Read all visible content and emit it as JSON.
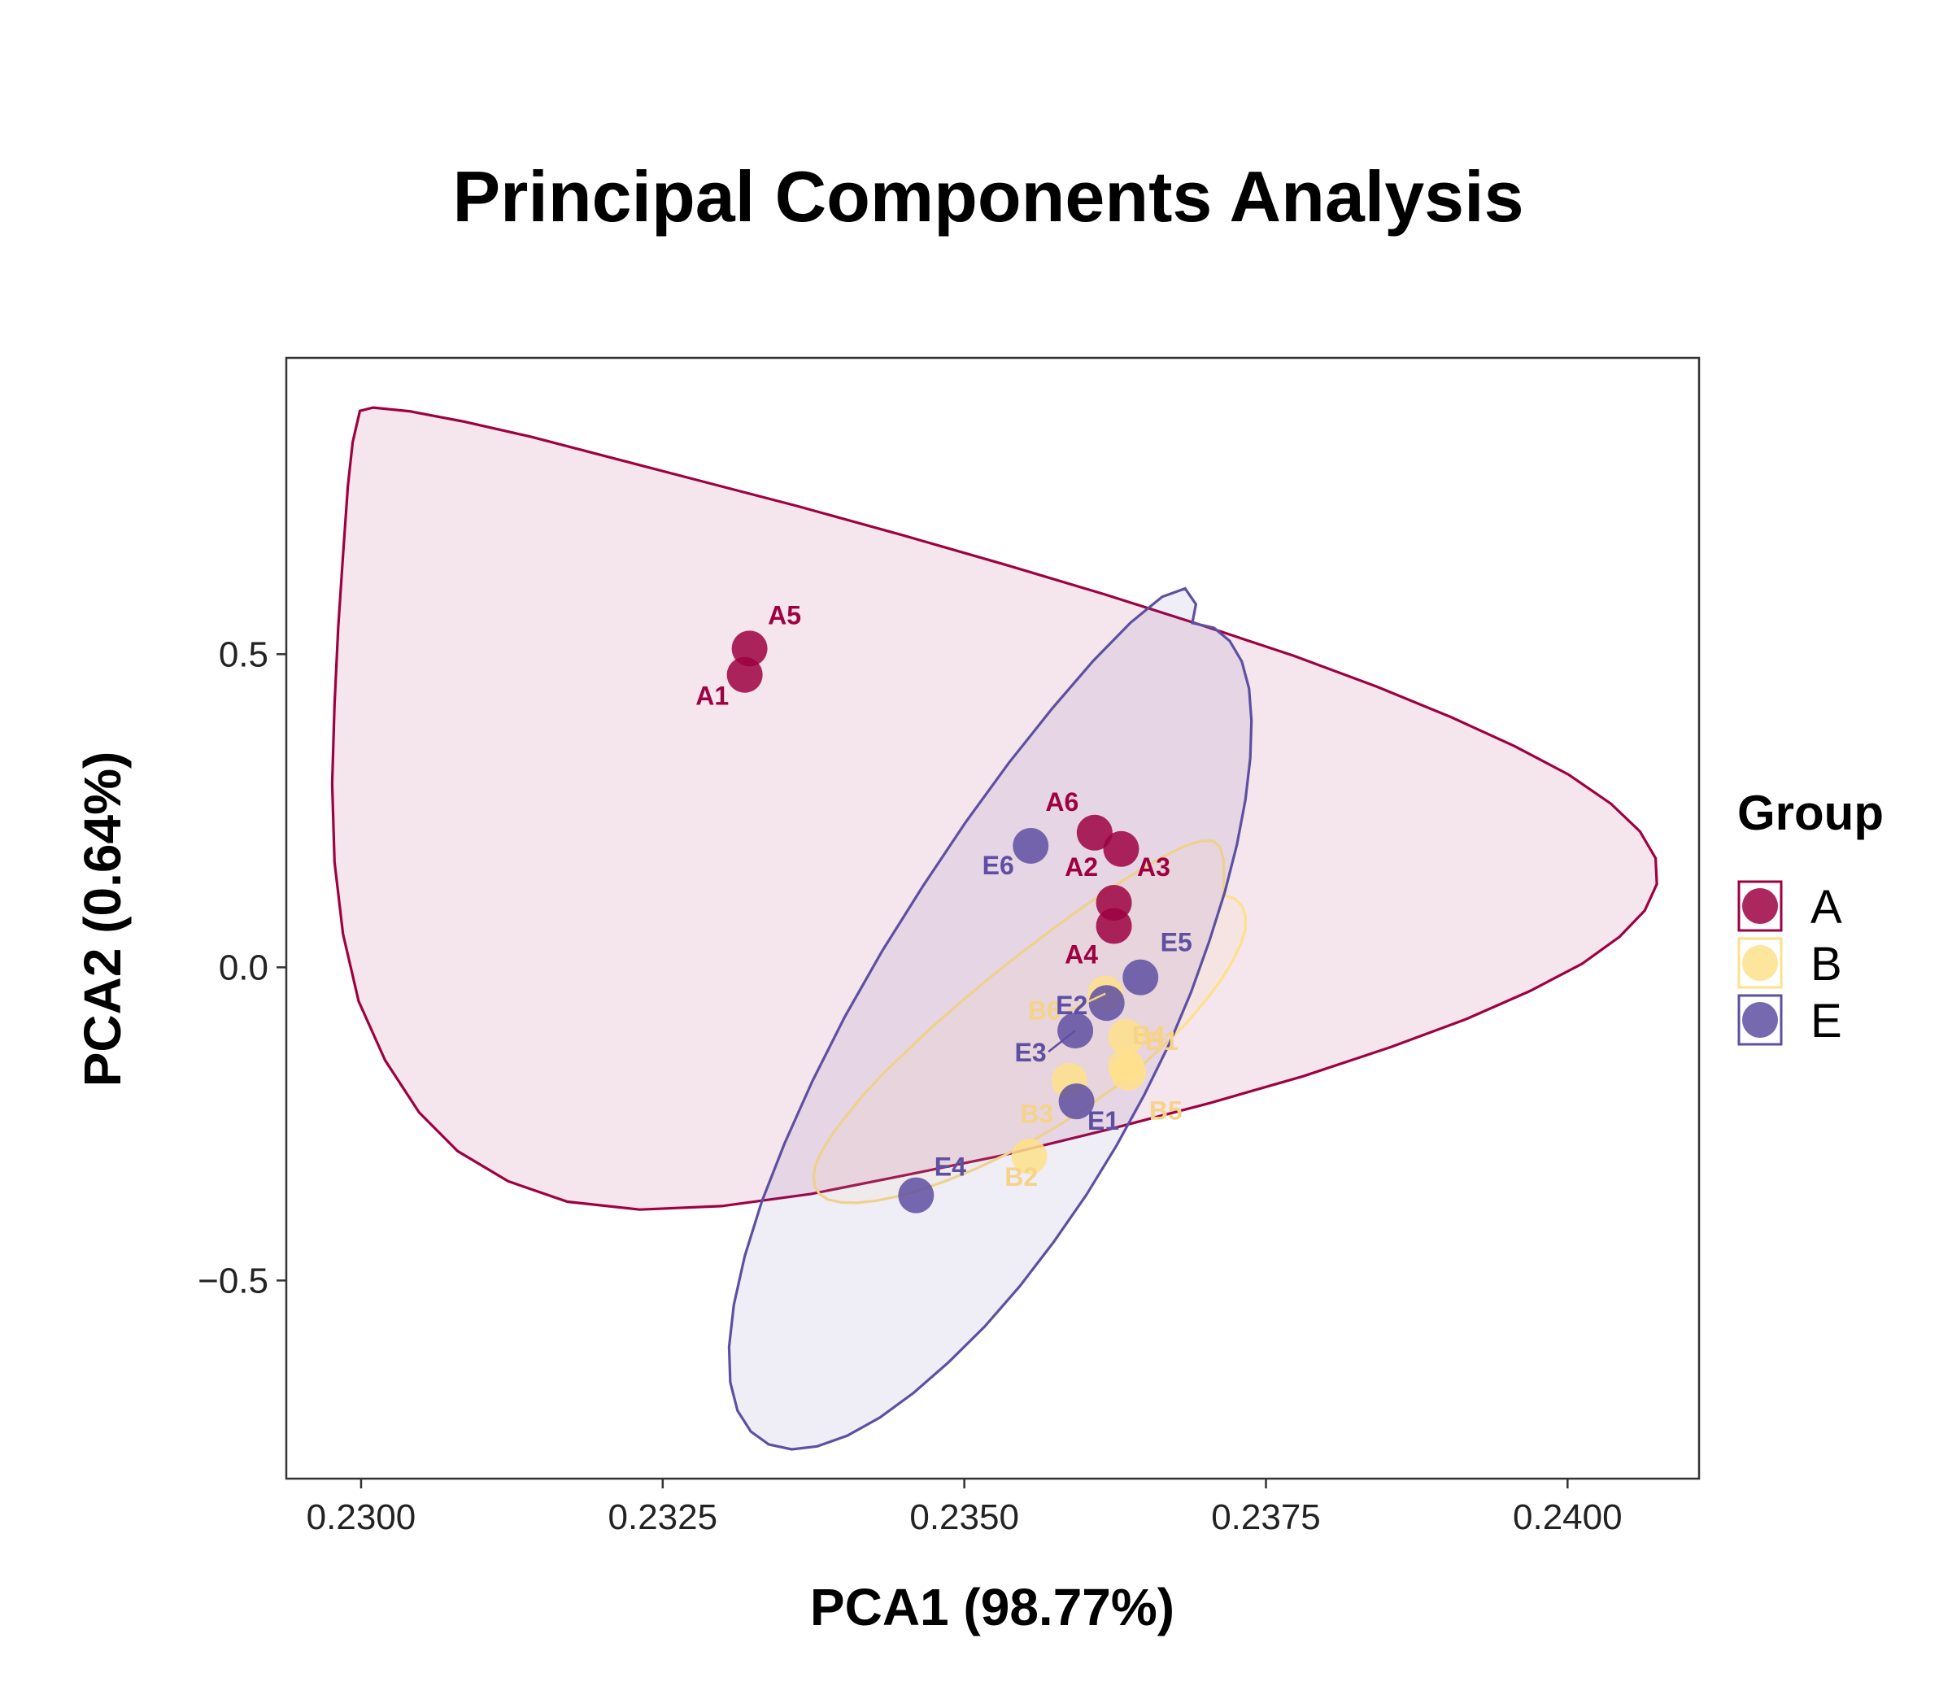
{
  "chart_data": {
    "type": "scatter",
    "title": "Principal Components Analysis",
    "xlabel": "PCA1 (98.77%)",
    "ylabel": "PCA2 (0.64%)",
    "xlim": [
      0.22938,
      0.24109
    ],
    "ylim": [
      -0.8164,
      0.9731
    ],
    "xticks": [
      0.23,
      0.2325,
      0.235,
      0.2375,
      0.24
    ],
    "xtick_labels": [
      "0.2300",
      "0.2325",
      "0.2350",
      "0.2375",
      "0.2400"
    ],
    "yticks": [
      0.5,
      0.0,
      -0.5
    ],
    "ytick_labels": [
      "0.5",
      "0.0",
      "−0.5"
    ],
    "grid": false,
    "legend": {
      "title": "Group",
      "placement": "right",
      "entries": [
        {
          "label": "A",
          "color": "#9E0142"
        },
        {
          "label": "B",
          "color": "#FEE08B"
        },
        {
          "label": "E",
          "color": "#5E4FA2"
        }
      ]
    },
    "series": [
      {
        "name": "A",
        "color": "#9E0142",
        "label_color": "#9E0142",
        "points": [
          {
            "label": "A1",
            "x": 0.23318,
            "y": 0.467
          },
          {
            "label": "A2",
            "x": 0.23624,
            "y": 0.103
          },
          {
            "label": "A3",
            "x": 0.2363,
            "y": 0.189
          },
          {
            "label": "A4",
            "x": 0.23624,
            "y": 0.066
          },
          {
            "label": "A5",
            "x": 0.23322,
            "y": 0.509
          },
          {
            "label": "A6",
            "x": 0.23608,
            "y": 0.215
          }
        ],
        "ellipse": [
          [
            0.22999,
            0.8884
          ],
          [
            0.2301,
            0.8937
          ],
          [
            0.2304,
            0.8879
          ],
          [
            0.23084,
            0.8718
          ],
          [
            0.2314,
            0.8475
          ],
          [
            0.23204,
            0.8155
          ],
          [
            0.23278,
            0.7783
          ],
          [
            0.23361,
            0.7368
          ],
          [
            0.23449,
            0.6899
          ],
          [
            0.23534,
            0.6428
          ],
          [
            0.23616,
            0.5957
          ],
          [
            0.23696,
            0.5466
          ],
          [
            0.23773,
            0.4975
          ],
          [
            0.23842,
            0.4481
          ],
          [
            0.23903,
            0.3999
          ],
          [
            0.23956,
            0.3533
          ],
          [
            0.24001,
            0.3075
          ],
          [
            0.24036,
            0.2612
          ],
          [
            0.2406,
            0.217
          ],
          [
            0.24073,
            0.1742
          ],
          [
            0.24074,
            0.1328
          ],
          [
            0.24064,
            0.0906
          ],
          [
            0.24043,
            0.0486
          ],
          [
            0.24012,
            0.0056
          ],
          [
            0.23969,
            -0.0377
          ],
          [
            0.23916,
            -0.0827
          ],
          [
            0.23854,
            -0.1269
          ],
          [
            0.23781,
            -0.1738
          ],
          [
            0.23703,
            -0.2169
          ],
          [
            0.2362,
            -0.2587
          ],
          [
            0.23532,
            -0.3001
          ],
          [
            0.2345,
            -0.3323
          ],
          [
            0.23373,
            -0.3618
          ],
          [
            0.23299,
            -0.3812
          ],
          [
            0.23231,
            -0.3868
          ],
          [
            0.23171,
            -0.3742
          ],
          [
            0.23122,
            -0.3416
          ],
          [
            0.2308,
            -0.2935
          ],
          [
            0.23048,
            -0.2315
          ],
          [
            0.2302,
            -0.1486
          ],
          [
            0.22998,
            -0.0544
          ],
          [
            0.22985,
            0.0534
          ],
          [
            0.22978,
            0.1681
          ],
          [
            0.22976,
            0.2932
          ],
          [
            0.22978,
            0.4194
          ],
          [
            0.22981,
            0.5418
          ],
          [
            0.22985,
            0.6573
          ],
          [
            0.22989,
            0.7683
          ],
          [
            0.22993,
            0.8383
          ],
          [
            0.22999,
            0.8884
          ]
        ],
        "fill": "#9E0142",
        "fill_opacity": 0.1
      },
      {
        "name": "B",
        "color": "#FEE08B",
        "label_color": "#F5D38A",
        "points": [
          {
            "label": "B1",
            "x": 0.23634,
            "y": -0.111
          },
          {
            "label": "B2",
            "x": 0.23554,
            "y": -0.302
          },
          {
            "label": "B3",
            "x": 0.23587,
            "y": -0.181
          },
          {
            "label": "B4",
            "x": 0.23634,
            "y": -0.158
          },
          {
            "label": "B5",
            "x": 0.23636,
            "y": -0.168
          },
          {
            "label": "B6",
            "x": 0.23617,
            "y": -0.042
          }
        ],
        "ellipse": [
          [
            0.23715,
            0.1155
          ],
          [
            0.23724,
            0.1098
          ],
          [
            0.2373,
            0.0986
          ],
          [
            0.23733,
            0.082
          ],
          [
            0.23733,
            0.061
          ],
          [
            0.23729,
            0.0361
          ],
          [
            0.23722,
            0.0082
          ],
          [
            0.23712,
            -0.0225
          ],
          [
            0.23699,
            -0.0553
          ],
          [
            0.23684,
            -0.0893
          ],
          [
            0.23666,
            -0.1236
          ],
          [
            0.23647,
            -0.1574
          ],
          [
            0.23626,
            -0.1901
          ],
          [
            0.23603,
            -0.2213
          ],
          [
            0.2358,
            -0.2504
          ],
          [
            0.23556,
            -0.2772
          ],
          [
            0.23532,
            -0.3012
          ],
          [
            0.23509,
            -0.3222
          ],
          [
            0.23486,
            -0.3401
          ],
          [
            0.23465,
            -0.3546
          ],
          [
            0.23445,
            -0.3655
          ],
          [
            0.23427,
            -0.3727
          ],
          [
            0.23411,
            -0.376
          ],
          [
            0.23398,
            -0.3754
          ],
          [
            0.23387,
            -0.3708
          ],
          [
            0.2338,
            -0.3622
          ],
          [
            0.23376,
            -0.3497
          ],
          [
            0.23375,
            -0.3333
          ],
          [
            0.23377,
            -0.3132
          ],
          [
            0.23383,
            -0.2896
          ],
          [
            0.23392,
            -0.2626
          ],
          [
            0.23404,
            -0.2326
          ],
          [
            0.23418,
            -0.2
          ],
          [
            0.23435,
            -0.1651
          ],
          [
            0.23455,
            -0.1285
          ],
          [
            0.23476,
            -0.0906
          ],
          [
            0.23499,
            -0.052
          ],
          [
            0.23523,
            -0.0135
          ],
          [
            0.23548,
            0.0245
          ],
          [
            0.23573,
            0.0611
          ],
          [
            0.23598,
            0.0957
          ],
          [
            0.23622,
            0.1272
          ],
          [
            0.23645,
            0.1546
          ],
          [
            0.23665,
            0.1769
          ],
          [
            0.23682,
            0.193
          ],
          [
            0.23696,
            0.2018
          ],
          [
            0.23706,
            0.2022
          ],
          [
            0.23712,
            0.1925
          ],
          [
            0.23715,
            0.171
          ],
          [
            0.23715,
            0.1155
          ]
        ],
        "fill": "#FEE08B",
        "fill_opacity": 0.1
      },
      {
        "name": "E",
        "color": "#5E4FA2",
        "label_color": "#5E4FA2",
        "points": [
          {
            "label": "E1",
            "x": 0.23593,
            "y": -0.214
          },
          {
            "label": "E2",
            "x": 0.23618,
            "y": -0.057
          },
          {
            "label": "E3",
            "x": 0.23592,
            "y": -0.101
          },
          {
            "label": "E4",
            "x": 0.2346,
            "y": -0.364
          },
          {
            "label": "E5",
            "x": 0.23646,
            "y": -0.016
          },
          {
            "label": "E6",
            "x": 0.23555,
            "y": 0.194
          }
        ],
        "ellipse": [
          [
            0.23689,
            0.5499
          ],
          [
            0.23707,
            0.5419
          ],
          [
            0.2372,
            0.5209
          ],
          [
            0.2373,
            0.4883
          ],
          [
            0.23736,
            0.4454
          ],
          [
            0.23738,
            0.3935
          ],
          [
            0.23737,
            0.3339
          ],
          [
            0.23733,
            0.2678
          ],
          [
            0.23726,
            0.1964
          ],
          [
            0.23716,
            0.1206
          ],
          [
            0.23703,
            0.0416
          ],
          [
            0.23688,
            -0.0396
          ],
          [
            0.2367,
            -0.1219
          ],
          [
            0.23649,
            -0.2041
          ],
          [
            0.23626,
            -0.2851
          ],
          [
            0.23601,
            -0.3637
          ],
          [
            0.23574,
            -0.4387
          ],
          [
            0.23546,
            -0.509
          ],
          [
            0.23517,
            -0.5733
          ],
          [
            0.23487,
            -0.6305
          ],
          [
            0.23458,
            -0.6794
          ],
          [
            0.2343,
            -0.7189
          ],
          [
            0.23403,
            -0.7477
          ],
          [
            0.23378,
            -0.7649
          ],
          [
            0.23357,
            -0.7697
          ],
          [
            0.23338,
            -0.7618
          ],
          [
            0.23323,
            -0.7411
          ],
          [
            0.23312,
            -0.708
          ],
          [
            0.23306,
            -0.6628
          ],
          [
            0.23305,
            -0.6061
          ],
          [
            0.23309,
            -0.5385
          ],
          [
            0.23318,
            -0.461
          ],
          [
            0.23332,
            -0.3748
          ],
          [
            0.23351,
            -0.2813
          ],
          [
            0.23374,
            -0.182
          ],
          [
            0.23401,
            -0.0787
          ],
          [
            0.23432,
            0.0264
          ],
          [
            0.23466,
            0.1305
          ],
          [
            0.23501,
            0.2313
          ],
          [
            0.23537,
            0.3266
          ],
          [
            0.23573,
            0.4137
          ],
          [
            0.23607,
            0.4897
          ],
          [
            0.23638,
            0.5507
          ],
          [
            0.23664,
            0.5916
          ],
          [
            0.23683,
            0.6048
          ],
          [
            0.23692,
            0.5798
          ],
          [
            0.23689,
            0.5499
          ]
        ],
        "fill": "#5E4FA2",
        "fill_opacity": 0.1
      }
    ]
  }
}
